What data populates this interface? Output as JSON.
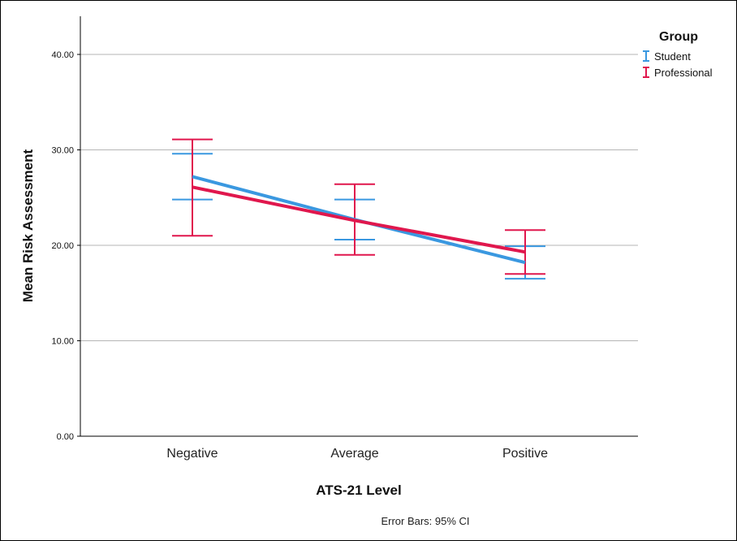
{
  "chart_data": {
    "type": "line",
    "xlabel": "ATS-21 Level",
    "ylabel": "Mean Risk Assessment",
    "categories": [
      "Negative",
      "Average",
      "Positive"
    ],
    "ylim": [
      0,
      44
    ],
    "yticks": [
      0,
      10,
      20,
      30,
      40
    ],
    "ytick_labels": [
      "0.00",
      "10.00",
      "20.00",
      "30.00",
      "40.00"
    ],
    "grid": true,
    "legend": {
      "title": "Group",
      "placement": "top-right",
      "entries": [
        "Student",
        "Professional"
      ]
    },
    "series": [
      {
        "name": "Student",
        "color": "#3a98e0",
        "values": [
          27.2,
          22.7,
          18.2
        ],
        "ci_lower": [
          24.8,
          20.6,
          16.5
        ],
        "ci_upper": [
          29.6,
          24.8,
          19.9
        ]
      },
      {
        "name": "Professional",
        "color": "#e0174d",
        "values": [
          26.1,
          22.6,
          19.3
        ],
        "ci_lower": [
          21.0,
          19.0,
          17.0
        ],
        "ci_upper": [
          31.1,
          26.4,
          21.6
        ]
      }
    ],
    "footnote": "Error Bars: 95% CI"
  }
}
